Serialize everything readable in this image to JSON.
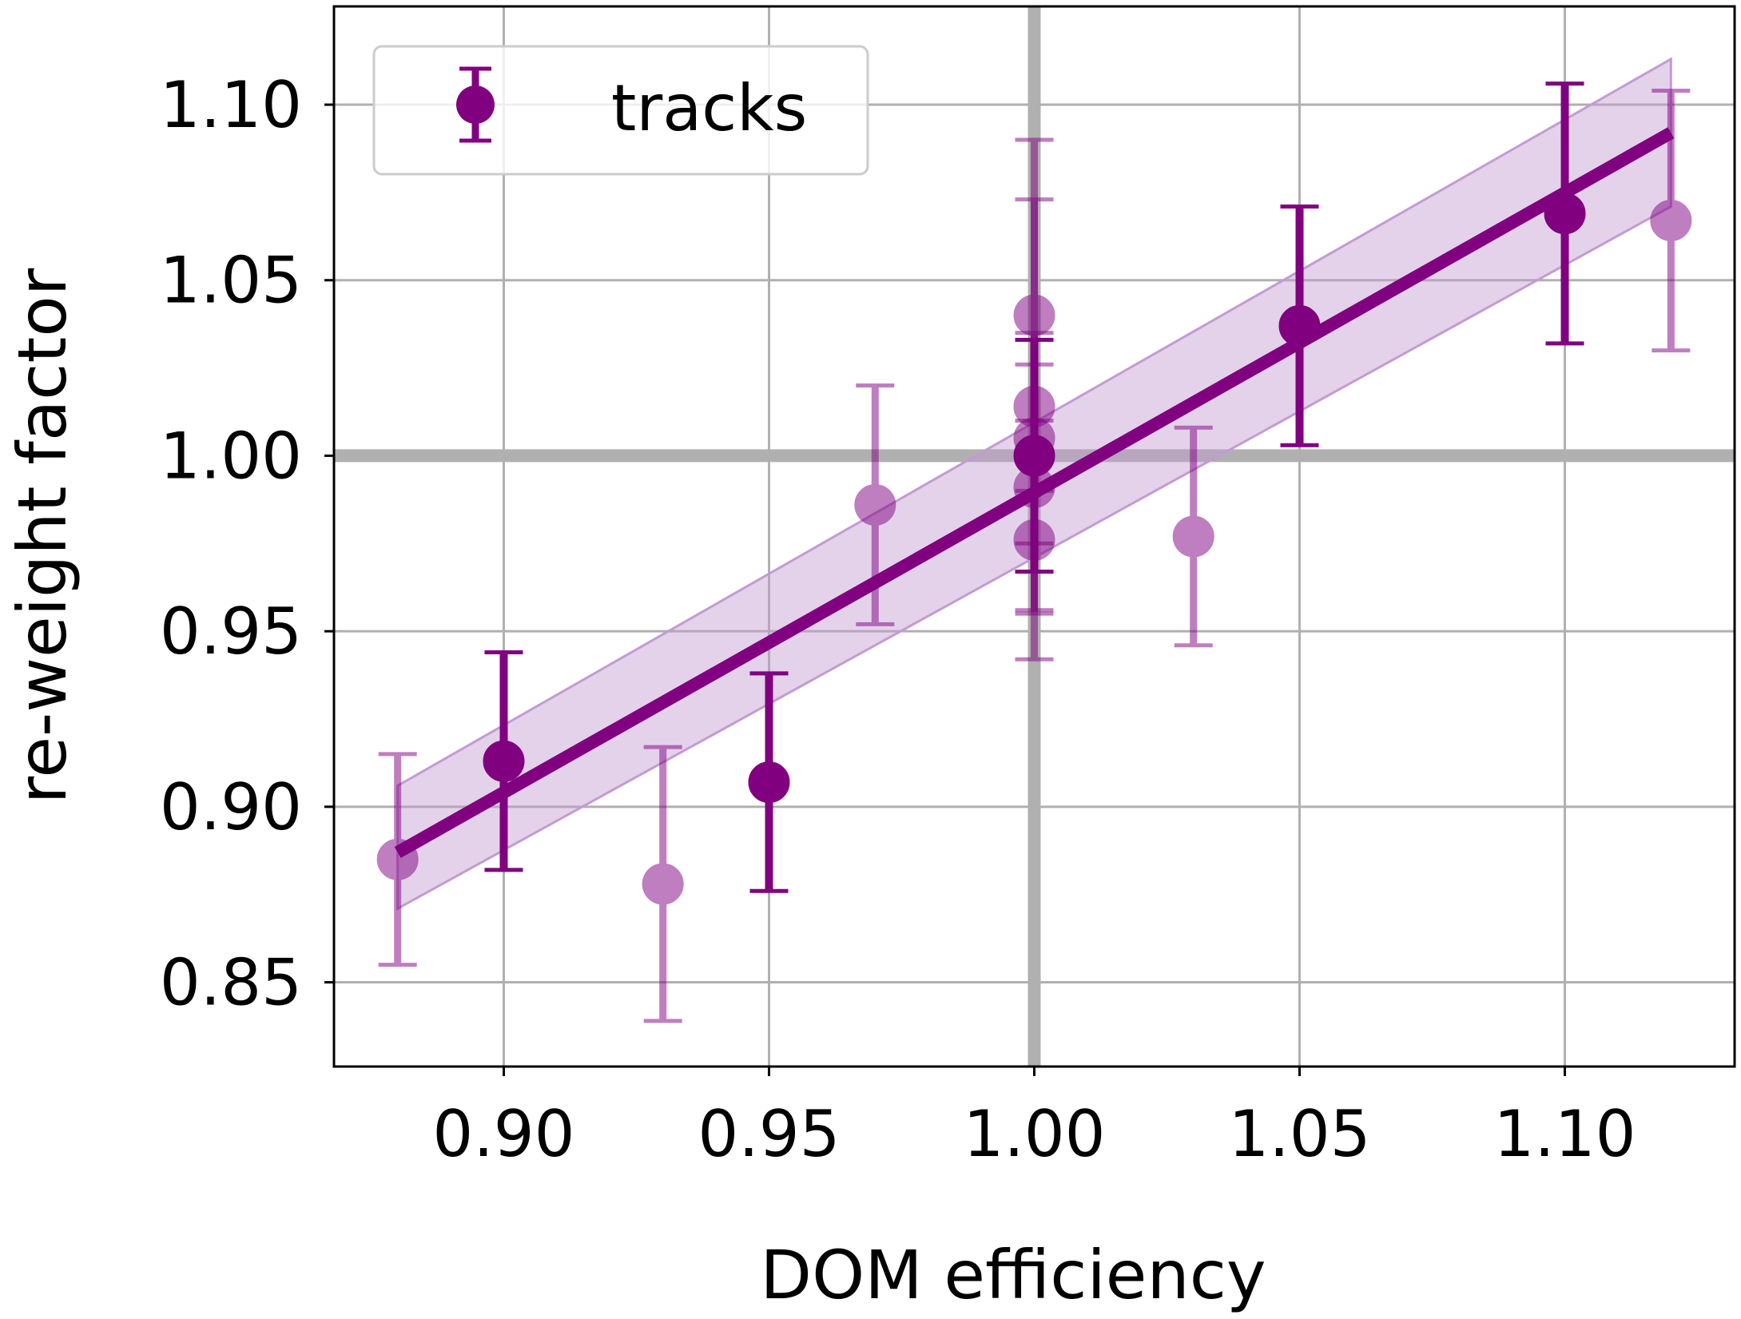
{
  "chart_data": {
    "type": "scatter",
    "title": "",
    "xlabel": "DOM efficiency",
    "ylabel": "re-weight factor",
    "xlim": [
      0.868,
      1.132
    ],
    "ylim": [
      0.826,
      1.128
    ],
    "x_ticks": [
      "0.90",
      "0.95",
      "1.00",
      "1.05",
      "1.10"
    ],
    "y_ticks": [
      "0.85",
      "0.90",
      "0.95",
      "1.00",
      "1.05",
      "1.10"
    ],
    "grid": true,
    "reference_lines": {
      "x": 1.0,
      "y": 1.0
    },
    "legend": {
      "position": "top-left",
      "entries": [
        "tracks"
      ]
    },
    "colors": {
      "series": "#800080",
      "band": "#c39bd3",
      "reference": "#b0b0b0",
      "grid": "#b0b0b0"
    },
    "series": [
      {
        "name": "tracks",
        "points": [
          {
            "x": 0.9,
            "y": 0.913,
            "yerr": 0.031,
            "style": "solid"
          },
          {
            "x": 0.95,
            "y": 0.907,
            "yerr": 0.031,
            "style": "solid"
          },
          {
            "x": 1.0,
            "y": 1.0,
            "yerr": 0.033,
            "style": "solid"
          },
          {
            "x": 1.05,
            "y": 1.037,
            "yerr": 0.034,
            "style": "solid"
          },
          {
            "x": 1.1,
            "y": 1.069,
            "yerr": 0.037,
            "style": "solid"
          },
          {
            "x": 0.88,
            "y": 0.885,
            "yerr": 0.03,
            "style": "faded"
          },
          {
            "x": 0.93,
            "y": 0.878,
            "yerr": 0.039,
            "style": "faded"
          },
          {
            "x": 0.97,
            "y": 0.986,
            "yerr": 0.034,
            "style": "faded"
          },
          {
            "x": 1.0,
            "y": 1.04,
            "yerr": 0.05,
            "style": "faded"
          },
          {
            "x": 1.0,
            "y": 1.014,
            "yerr": 0.059,
            "style": "faded"
          },
          {
            "x": 1.0,
            "y": 1.005,
            "yerr": 0.03,
            "style": "faded"
          },
          {
            "x": 1.0,
            "y": 0.991,
            "yerr": 0.035,
            "style": "faded"
          },
          {
            "x": 1.0,
            "y": 0.976,
            "yerr": 0.034,
            "style": "faded"
          },
          {
            "x": 1.03,
            "y": 0.977,
            "yerr": 0.031,
            "style": "faded"
          },
          {
            "x": 1.12,
            "y": 1.067,
            "yerr": 0.037,
            "style": "faded"
          }
        ]
      }
    ],
    "fit": {
      "x": [
        0.88,
        1.12
      ],
      "y": [
        0.887,
        1.092
      ],
      "band_lower": [
        0.871,
        1.071
      ],
      "band_upper": [
        0.906,
        1.113
      ]
    }
  }
}
